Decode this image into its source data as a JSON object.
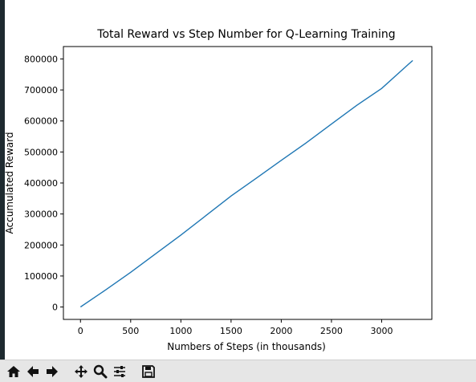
{
  "chart_data": {
    "type": "line",
    "title": "Total Reward vs Step Number for Q-Learning Training",
    "xlabel": "Numbers of Steps (in thousands)",
    "ylabel": "Accumulated Reward",
    "xlim": [
      -170,
      3500
    ],
    "ylim": [
      -40000,
      840000
    ],
    "xticks": [
      0,
      500,
      1000,
      1500,
      2000,
      2500,
      3000
    ],
    "yticks": [
      0,
      100000,
      200000,
      300000,
      400000,
      500000,
      600000,
      700000,
      800000
    ],
    "grid": false,
    "line_color": "#1f77b4",
    "series": [
      {
        "x": [
          0,
          250,
          500,
          750,
          1000,
          1250,
          1500,
          1750,
          2000,
          2250,
          2500,
          2750,
          3000,
          3250,
          3310
        ],
        "y": [
          0,
          55000,
          112000,
          172000,
          232000,
          295000,
          358000,
          415000,
          473000,
          530000,
          590000,
          650000,
          705000,
          778000,
          795000
        ]
      }
    ]
  },
  "toolbar": {
    "items": [
      {
        "name": "home-icon"
      },
      {
        "name": "back-arrow-icon"
      },
      {
        "name": "forward-arrow-icon"
      },
      {
        "name": "pan-icon"
      },
      {
        "name": "zoom-icon"
      },
      {
        "name": "configure-subplots-icon"
      },
      {
        "name": "save-icon"
      }
    ]
  }
}
